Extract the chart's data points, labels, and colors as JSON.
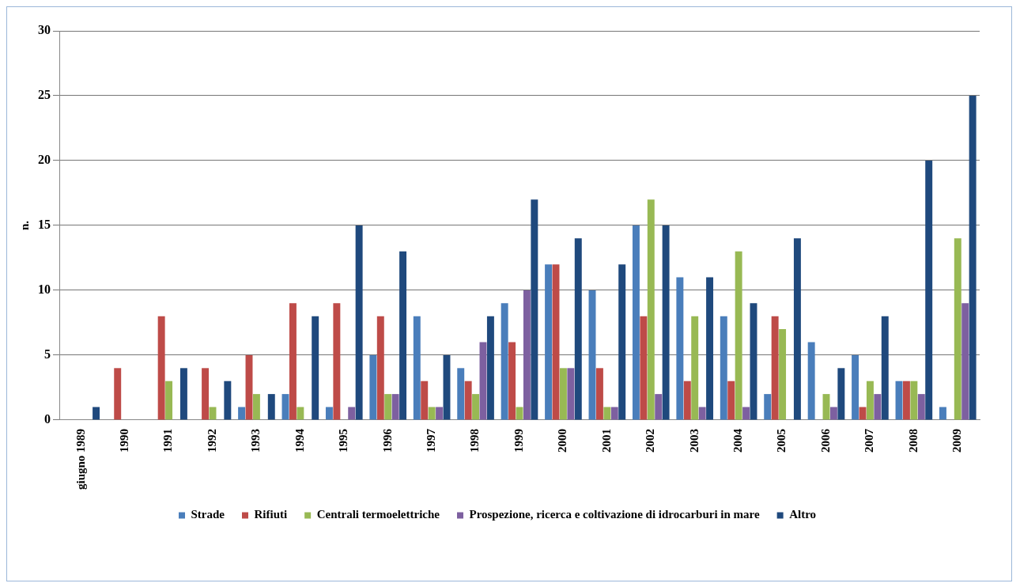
{
  "chart_data": {
    "type": "bar",
    "ylabel": "n.",
    "categories": [
      "giugno 1989",
      "1990",
      "1991",
      "1992",
      "1993",
      "1994",
      "1995",
      "1996",
      "1997",
      "1998",
      "1999",
      "2000",
      "2001",
      "2002",
      "2003",
      "2004",
      "2005",
      "2006",
      "2007",
      "2008",
      "2009"
    ],
    "series": [
      {
        "name": "Strade",
        "color": "#4a7ebb",
        "values": [
          0,
          0,
          0,
          0,
          1,
          2,
          1,
          5,
          8,
          4,
          9,
          12,
          10,
          15,
          11,
          8,
          2,
          6,
          5,
          3,
          1
        ]
      },
      {
        "name": "Rifiuti",
        "color": "#be4b48",
        "values": [
          0,
          4,
          8,
          4,
          5,
          9,
          9,
          8,
          3,
          3,
          6,
          12,
          4,
          8,
          3,
          3,
          8,
          0,
          1,
          3,
          0
        ]
      },
      {
        "name": "Centrali termoelettriche",
        "color": "#98b954",
        "values": [
          0,
          0,
          3,
          1,
          2,
          1,
          0,
          2,
          1,
          2,
          1,
          4,
          1,
          17,
          8,
          13,
          7,
          2,
          3,
          3,
          14
        ]
      },
      {
        "name": "Prospezione, ricerca e coltivazione di idrocarburi in mare",
        "color": "#7d60a0",
        "values": [
          0,
          0,
          0,
          0,
          0,
          0,
          1,
          2,
          1,
          6,
          10,
          4,
          1,
          2,
          1,
          1,
          0,
          1,
          2,
          2,
          9
        ]
      },
      {
        "name": "Altro",
        "color": "#1f497d",
        "values": [
          1,
          0,
          4,
          3,
          2,
          8,
          15,
          13,
          5,
          8,
          17,
          14,
          12,
          15,
          11,
          9,
          14,
          4,
          8,
          20,
          25
        ]
      }
    ],
    "ylim": [
      0,
      30
    ],
    "yticks": [
      0,
      5,
      10,
      15,
      20,
      25,
      30
    ],
    "grid": "y",
    "legend": "bottom"
  }
}
